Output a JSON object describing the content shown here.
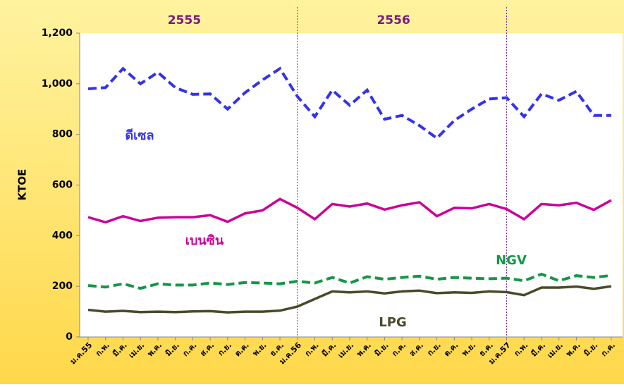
{
  "chart_data": {
    "type": "line",
    "y_label": "KTOE",
    "periods": [
      "2555",
      "2556"
    ],
    "categories": [
      "ม.ค.55",
      "ก.พ.",
      "มี.ค.",
      "เม.ย.",
      "พ.ค.",
      "มิ.ย.",
      "ก.ค.",
      "ส.ค.",
      "ก.ย.",
      "ต.ค.",
      "พ.ย.",
      "ธ.ค.",
      "ม.ค.56",
      "ก.พ.",
      "มี.ค.",
      "เม.ย.",
      "พ.ค.",
      "มิ.ย.",
      "ก.ค.",
      "ส.ค.",
      "ก.ย.",
      "ต.ค.",
      "พ.ย.",
      "ธ.ค.",
      "ม.ค.57",
      "ก.พ.",
      "มี.ค.",
      "เม.ย.",
      "พ.ค.",
      "มิ.ย.",
      "ก.ค."
    ],
    "ylim": [
      0,
      1200
    ],
    "yticks": [
      0,
      200,
      400,
      600,
      800,
      {
        "value": 1000,
        "label": "1,000"
      },
      {
        "value": 1200,
        "label": "1,200"
      }
    ],
    "series": [
      {
        "name": "ดีเซล",
        "color": "#3333ee",
        "dashed": true,
        "values": [
          980,
          985,
          1060,
          1000,
          1045,
          985,
          958,
          960,
          900,
          965,
          1015,
          1060,
          950,
          870,
          975,
          915,
          975,
          860,
          875,
          835,
          785,
          855,
          900,
          940,
          945,
          870,
          960,
          935,
          970,
          875,
          875
        ]
      },
      {
        "name": "เบนซิน",
        "color": "#cc0099",
        "dashed": false,
        "values": [
          473,
          453,
          477,
          458,
          471,
          473,
          473,
          481,
          455,
          488,
          500,
          545,
          510,
          465,
          525,
          515,
          527,
          503,
          520,
          532,
          477,
          510,
          508,
          525,
          505,
          465,
          525,
          520,
          530,
          502,
          540
        ]
      },
      {
        "name": "NGV",
        "color": "#119944",
        "dashed": true,
        "values": [
          203,
          197,
          210,
          192,
          210,
          205,
          205,
          213,
          207,
          215,
          213,
          210,
          220,
          213,
          235,
          213,
          238,
          228,
          235,
          240,
          228,
          235,
          232,
          230,
          232,
          222,
          248,
          222,
          242,
          235,
          243
        ]
      },
      {
        "name": "LPG",
        "color": "#4a4a2a",
        "dashed": false,
        "values": [
          107,
          100,
          103,
          98,
          100,
          98,
          101,
          102,
          97,
          100,
          100,
          104,
          120,
          150,
          180,
          176,
          180,
          172,
          180,
          183,
          173,
          176,
          174,
          180,
          177,
          165,
          195,
          195,
          199,
          190,
          200
        ]
      }
    ]
  }
}
